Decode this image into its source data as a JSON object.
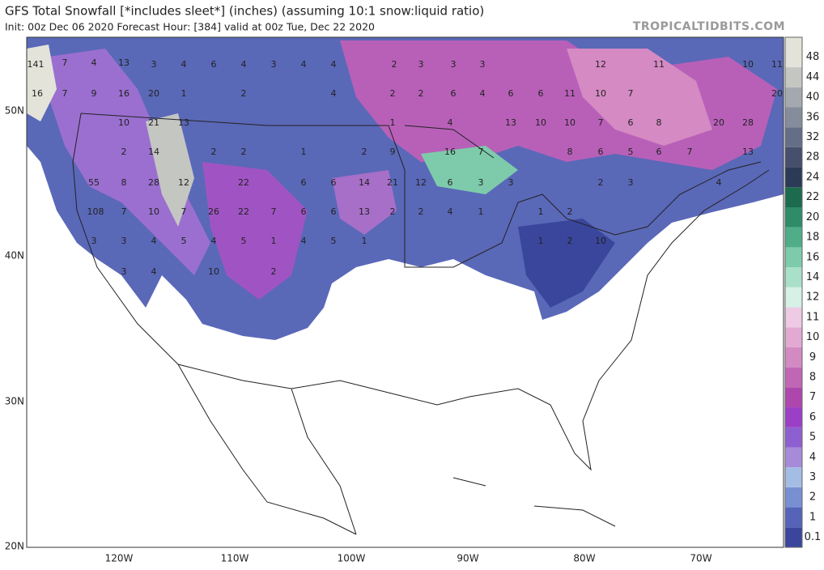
{
  "title": "GFS Total Snowfall [*includes sleet*] (inches) (assuming 10:1 snow:liquid ratio)",
  "subtitle": "Init: 00z Dec 06 2020   Forecast Hour: [384]   valid at 00z Tue, Dec 22 2020",
  "brand": "TROPICALTIDBITS.COM",
  "latitude_labels": [
    "50N",
    "40N",
    "30N",
    "20N"
  ],
  "longitude_labels": [
    "120W",
    "110W",
    "100W",
    "90W",
    "80W",
    "70W"
  ],
  "colorbar": {
    "levels": [
      0.1,
      1,
      2,
      3,
      4,
      5,
      6,
      7,
      8,
      9,
      10,
      11,
      12,
      14,
      16,
      18,
      20,
      22,
      24,
      28,
      32,
      36,
      40,
      44,
      48
    ],
    "colors": [
      "#3a469c",
      "#5564b8",
      "#7890d2",
      "#a3bde4",
      "#a78bd9",
      "#8e5fd0",
      "#9b3fc6",
      "#ad46ad",
      "#c166b4",
      "#d38ac3",
      "#e2a9d3",
      "#eecae5",
      "#d6f1e6",
      "#a9e0c9",
      "#7ecbab",
      "#4fad88",
      "#2e8c69",
      "#1c6b4e",
      "#2b3a55",
      "#464f6c",
      "#646e86",
      "#858d9c",
      "#a4a9b0",
      "#c4c6c2",
      "#e3e3da"
    ]
  },
  "map_labels": [
    "141",
    "7",
    "4",
    "13",
    "3",
    "4",
    "6",
    "4",
    "3",
    "4",
    "4",
    "2",
    "3",
    "3",
    "3",
    "12",
    "11",
    "10",
    "11",
    "16",
    "7",
    "9",
    "16",
    "20",
    "1",
    "2",
    "4",
    "2",
    "2",
    "6",
    "4",
    "6",
    "6",
    "11",
    "10",
    "7",
    "20",
    "10",
    "21",
    "13",
    "1",
    "4",
    "13",
    "10",
    "10",
    "7",
    "6",
    "8",
    "20",
    "28",
    "2",
    "14",
    "2",
    "2",
    "1",
    "2",
    "9",
    "16",
    "7",
    "8",
    "6",
    "5",
    "6",
    "7",
    "13",
    "55",
    "8",
    "28",
    "12",
    "22",
    "6",
    "6",
    "14",
    "21",
    "12",
    "6",
    "3",
    "3",
    "2",
    "3",
    "4",
    "108",
    "7",
    "10",
    "7",
    "26",
    "22",
    "7",
    "6",
    "6",
    "13",
    "2",
    "2",
    "4",
    "1",
    "1",
    "2",
    "3",
    "3",
    "4",
    "5",
    "4",
    "5",
    "1",
    "4",
    "5",
    "1",
    "1",
    "2",
    "10",
    "3",
    "4",
    "10",
    "2"
  ]
}
